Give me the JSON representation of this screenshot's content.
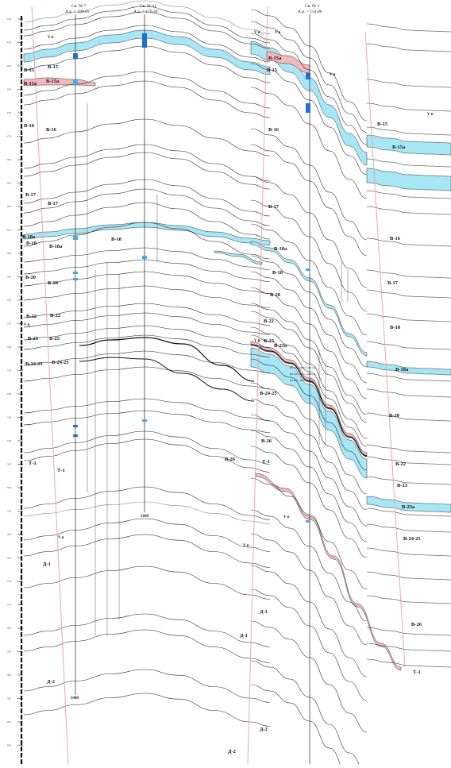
{
  "wells": [
    {
      "name": "Св. № 7",
      "altitude": "А.р. = 189.05"
    },
    {
      "name": "Св. № 11",
      "altitude": "А.р. = 176.20"
    },
    {
      "name": "Св. № 1",
      "altitude": "А.р. = 154.86"
    }
  ],
  "well_bottoms": [
    "5440",
    "5180"
  ],
  "marker_label": "V в",
  "layer_labels": {
    "panel1": [
      "В-15",
      "В-15а",
      "В-16",
      "В-17",
      "В-18",
      "В-18а",
      "В-20",
      "В-22",
      "В-23",
      "В-24-25",
      "Т-1",
      "Д-1",
      "Д-2"
    ],
    "panel2": [
      "В-15",
      "В-15а",
      "В-16",
      "В-17",
      "В-18",
      "В-18а",
      "В-20",
      "В-22",
      "В-23",
      "В-24-25",
      "В-26",
      "Т-1",
      "Д-1",
      "Д-2"
    ],
    "panel3": [
      "В-15",
      "В-15а",
      "В-16",
      "В-17",
      "В-18",
      "В-18а",
      "В-20",
      "В-22",
      "В-23",
      "В-23а",
      "В-24-25",
      "В-26",
      "Т-1",
      "Д-1",
      "Д-2"
    ],
    "panel4": [
      "В-15",
      "В-15а",
      "В-16",
      "В-17",
      "В-18",
      "В-18а",
      "В-20",
      "В-22",
      "В-23",
      "В-23а",
      "В-24-25",
      "В-26",
      "Т-1"
    ]
  },
  "test_records": [
    "ИП МП - 4806.5-4821 (3)",
    "ИП МП - 4823.5-4834 (3)",
    "ИП МП - 4845.5-4854 (2)"
  ],
  "depth_scale": [
    "4500",
    "4550",
    "4600",
    "4650",
    "4700",
    "4750",
    "4800",
    "4850",
    "4900",
    "4950",
    "5000",
    "5050",
    "5100",
    "5150",
    "5200",
    "5250",
    "5300",
    "5350",
    "5400",
    "5450",
    "5500",
    "5550",
    "5600",
    "5650",
    "5700",
    "5750",
    "5800",
    "5850",
    "5900",
    "5950",
    "6000",
    "6050",
    "6100"
  ],
  "colors": {
    "sand_fill": "#a6e6f5",
    "shale_fill": "#f4b8b8",
    "perforation": "#1e6fd9",
    "perforation_light": "#4aa8ec",
    "boundary": "#e6a7ad",
    "line": "#222222"
  }
}
